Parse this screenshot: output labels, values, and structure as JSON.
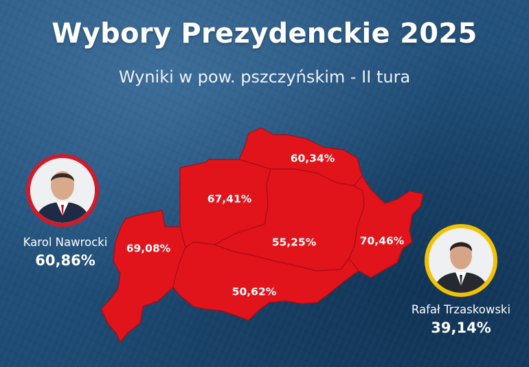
{
  "title": "Wybory Prezydenckie 2025",
  "subtitle": "Wyniki w pow. pszczyńskim - II tura",
  "map": {
    "fill_color": "#e1141c",
    "region_results": [
      {
        "id": "north",
        "value": "60,34%"
      },
      {
        "id": "northwest",
        "value": "67,41%"
      },
      {
        "id": "west",
        "value": "69,08%"
      },
      {
        "id": "center",
        "value": "55,25%"
      },
      {
        "id": "east",
        "value": "70,46%"
      },
      {
        "id": "south",
        "value": "50,62%"
      }
    ]
  },
  "candidates": {
    "left": {
      "name": "Karol Nawrocki",
      "percent": "60,86%",
      "ring_color": "#d11a2a"
    },
    "right": {
      "name": "Rafał Trzaskowski",
      "percent": "39,14%",
      "ring_color": "#f2c200"
    }
  }
}
